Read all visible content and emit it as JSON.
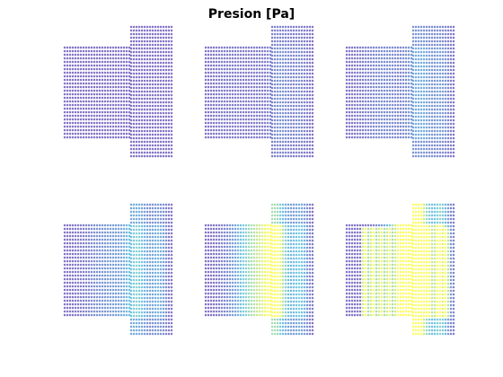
{
  "chart_data": {
    "type": "scatter",
    "title": "Presion [Pa]",
    "xlabel": "",
    "ylabel": "",
    "grid": false,
    "axes_visible": false,
    "colormap": "parula",
    "marker_color_low": "#3e26a8",
    "marker_color_mid": "#1fa8d8",
    "marker_color_high": "#f9fb0e",
    "subplots": [
      {
        "row": 1,
        "col": 1,
        "pressure_level": 0.0
      },
      {
        "row": 1,
        "col": 2,
        "pressure_level": 0.15
      },
      {
        "row": 1,
        "col": 3,
        "pressure_level": 0.3
      },
      {
        "row": 2,
        "col": 1,
        "pressure_level": 0.45
      },
      {
        "row": 2,
        "col": 2,
        "pressure_level": 0.65
      },
      {
        "row": 2,
        "col": 3,
        "pressure_level": 1.0
      }
    ]
  }
}
